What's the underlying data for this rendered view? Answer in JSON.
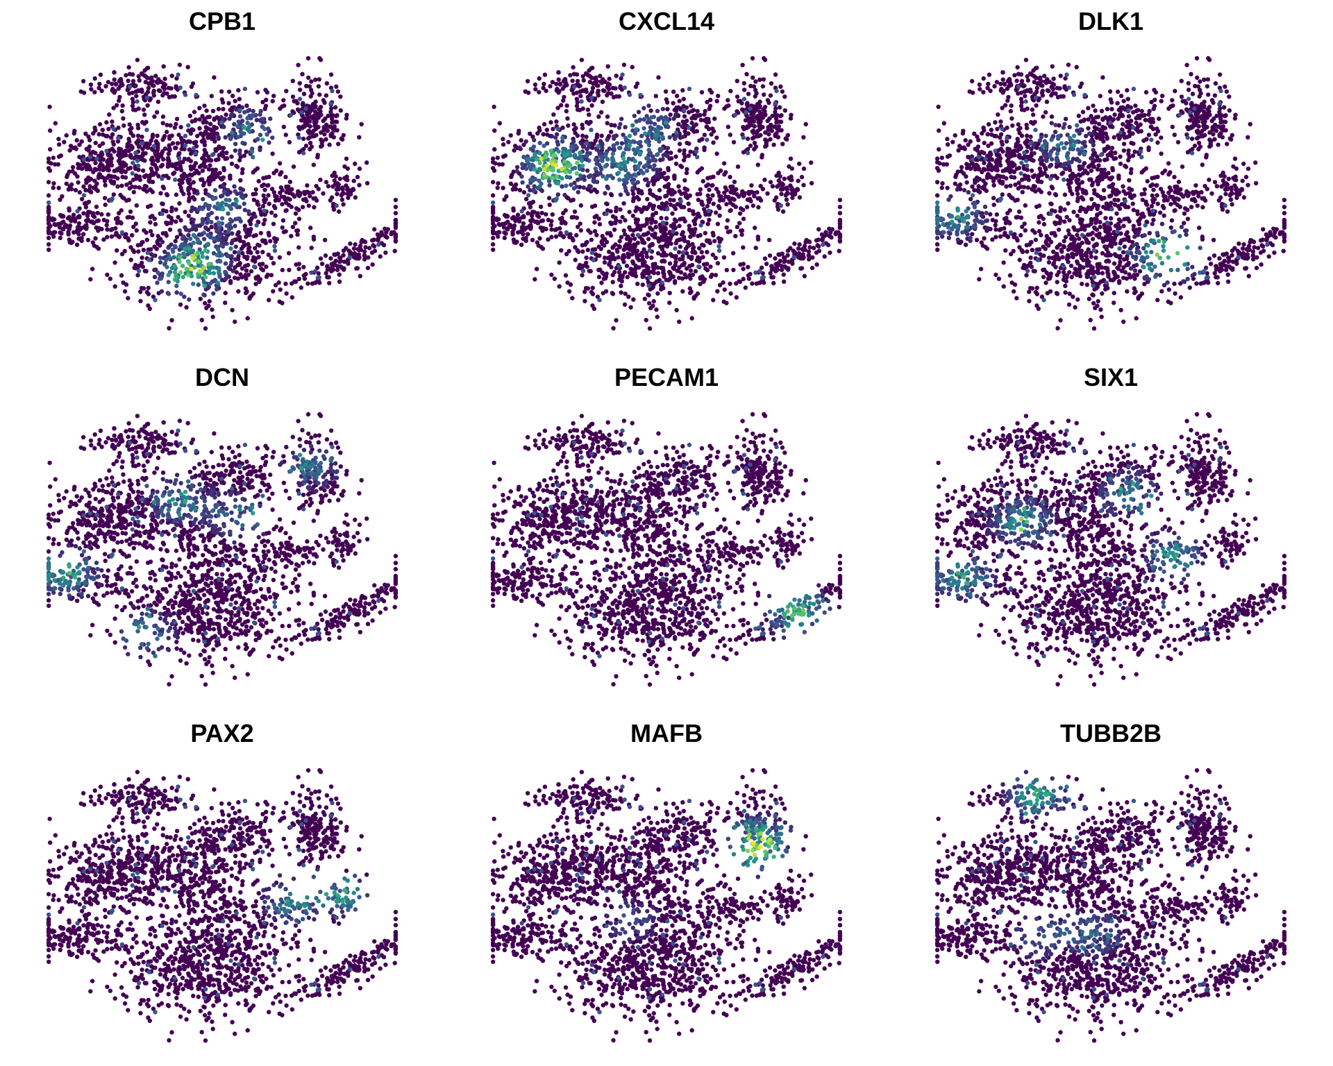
{
  "chart_data": [
    {
      "type": "scatter",
      "title": "CPB1",
      "xlabel": "",
      "ylabel": "",
      "grid": false,
      "legend": "none",
      "colormap": [
        "#440154",
        "#3b528b",
        "#21918c",
        "#5ec962",
        "#fde725"
      ],
      "expression_hotspots": [
        {
          "x": 0.43,
          "y": 0.73,
          "intensity": 0.55
        },
        {
          "x": 0.4,
          "y": 0.8,
          "intensity": 0.5
        },
        {
          "x": 0.5,
          "y": 0.55,
          "intensity": 0.35
        },
        {
          "x": 0.58,
          "y": 0.27,
          "intensity": 0.35
        }
      ]
    },
    {
      "type": "scatter",
      "title": "CXCL14",
      "xlabel": "",
      "ylabel": "",
      "grid": false,
      "legend": "none",
      "colormap": [
        "#440154",
        "#3b528b",
        "#21918c",
        "#5ec962",
        "#fde725"
      ],
      "expression_hotspots": [
        {
          "x": 0.18,
          "y": 0.4,
          "intensity": 0.85
        },
        {
          "x": 0.38,
          "y": 0.4,
          "intensity": 0.45
        },
        {
          "x": 0.45,
          "y": 0.27,
          "intensity": 0.4
        }
      ]
    },
    {
      "type": "scatter",
      "title": "DLK1",
      "xlabel": "",
      "ylabel": "",
      "grid": false,
      "legend": "none",
      "colormap": [
        "#440154",
        "#3b528b",
        "#21918c",
        "#5ec962",
        "#fde725"
      ],
      "expression_hotspots": [
        {
          "x": 0.06,
          "y": 0.58,
          "intensity": 0.5
        },
        {
          "x": 0.66,
          "y": 0.72,
          "intensity": 0.8
        },
        {
          "x": 0.37,
          "y": 0.32,
          "intensity": 0.35
        }
      ]
    },
    {
      "type": "scatter",
      "title": "DCN",
      "xlabel": "",
      "ylabel": "",
      "grid": false,
      "legend": "none",
      "colormap": [
        "#440154",
        "#3b528b",
        "#21918c",
        "#5ec962",
        "#fde725"
      ],
      "expression_hotspots": [
        {
          "x": 0.06,
          "y": 0.58,
          "intensity": 0.6
        },
        {
          "x": 0.38,
          "y": 0.32,
          "intensity": 0.45
        },
        {
          "x": 0.55,
          "y": 0.38,
          "intensity": 0.4
        },
        {
          "x": 0.75,
          "y": 0.2,
          "intensity": 0.35
        },
        {
          "x": 0.28,
          "y": 0.8,
          "intensity": 0.4
        }
      ]
    },
    {
      "type": "scatter",
      "title": "PECAM1",
      "xlabel": "",
      "ylabel": "",
      "grid": false,
      "legend": "none",
      "colormap": [
        "#440154",
        "#3b528b",
        "#21918c",
        "#5ec962",
        "#fde725"
      ],
      "expression_hotspots": [
        {
          "x": 0.87,
          "y": 0.72,
          "intensity": 0.65
        }
      ]
    },
    {
      "type": "scatter",
      "title": "SIX1",
      "xlabel": "",
      "ylabel": "",
      "grid": false,
      "legend": "none",
      "colormap": [
        "#440154",
        "#3b528b",
        "#21918c",
        "#5ec962",
        "#fde725"
      ],
      "expression_hotspots": [
        {
          "x": 0.08,
          "y": 0.6,
          "intensity": 0.55
        },
        {
          "x": 0.25,
          "y": 0.4,
          "intensity": 0.5
        },
        {
          "x": 0.55,
          "y": 0.3,
          "intensity": 0.45
        },
        {
          "x": 0.68,
          "y": 0.52,
          "intensity": 0.5
        }
      ]
    },
    {
      "type": "scatter",
      "title": "PAX2",
      "xlabel": "",
      "ylabel": "",
      "grid": false,
      "legend": "none",
      "colormap": [
        "#440154",
        "#3b528b",
        "#21918c",
        "#5ec962",
        "#fde725"
      ],
      "expression_hotspots": [
        {
          "x": 0.83,
          "y": 0.45,
          "intensity": 0.55
        },
        {
          "x": 0.7,
          "y": 0.48,
          "intensity": 0.45
        }
      ]
    },
    {
      "type": "scatter",
      "title": "MAFB",
      "xlabel": "",
      "ylabel": "",
      "grid": false,
      "legend": "none",
      "colormap": [
        "#440154",
        "#3b528b",
        "#21918c",
        "#5ec962",
        "#fde725"
      ],
      "expression_hotspots": [
        {
          "x": 0.76,
          "y": 0.28,
          "intensity": 0.95
        },
        {
          "x": 0.4,
          "y": 0.55,
          "intensity": 0.25
        }
      ]
    },
    {
      "type": "scatter",
      "title": "TUBB2B",
      "xlabel": "",
      "ylabel": "",
      "grid": false,
      "legend": "none",
      "colormap": [
        "#440154",
        "#3b528b",
        "#21918c",
        "#5ec962",
        "#fde725"
      ],
      "expression_hotspots": [
        {
          "x": 0.29,
          "y": 0.1,
          "intensity": 0.55
        },
        {
          "x": 0.45,
          "y": 0.6,
          "intensity": 0.35
        },
        {
          "x": 0.3,
          "y": 0.6,
          "intensity": 0.3
        }
      ]
    }
  ]
}
